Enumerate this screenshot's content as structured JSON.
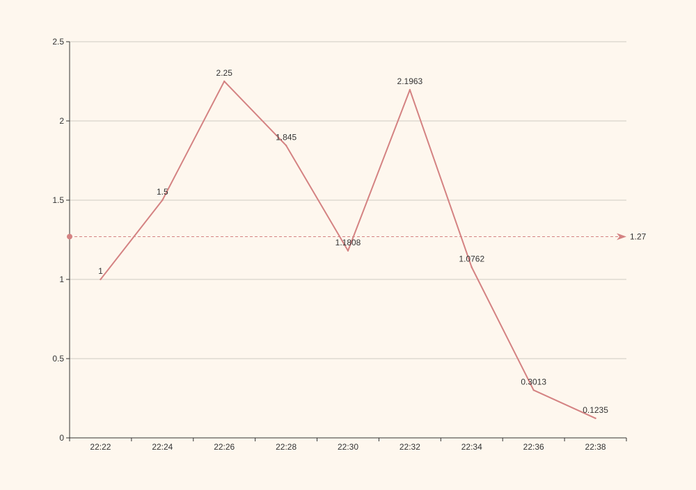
{
  "chart_data": {
    "type": "line",
    "categories": [
      "22:22",
      "22:24",
      "22:26",
      "22:28",
      "22:30",
      "22:32",
      "22:34",
      "22:36",
      "22:38"
    ],
    "series": [
      {
        "values": [
          1,
          1.5,
          2.25,
          1.845,
          1.1808,
          2.1963,
          1.0762,
          0.3013,
          0.1235
        ],
        "labels": [
          "1",
          "1.5",
          "2.25",
          "1.845",
          "1.1808",
          "2.1963",
          "1.0762",
          "0.3013",
          "0.1235"
        ]
      }
    ],
    "y_ticks": [
      "0",
      "0.5",
      "1",
      "1.5",
      "2",
      "2.5"
    ],
    "ylim": [
      0,
      2.5
    ],
    "grid": "horizontal",
    "mark_line": {
      "value": 1.27,
      "label": "1.27",
      "style": "dashed"
    },
    "colors": {
      "background": "#fef7ee",
      "series": "#d48282",
      "grid": "#cfcbc3",
      "axis": "#333333",
      "text": "#333333"
    }
  }
}
